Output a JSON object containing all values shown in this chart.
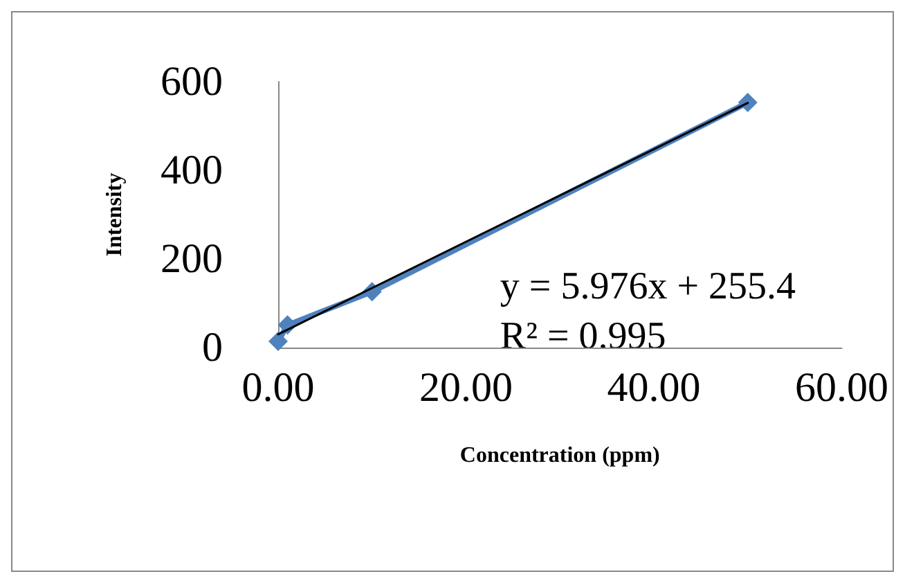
{
  "chart_data": {
    "type": "line",
    "xlabel": "Concentration (ppm)",
    "ylabel": "Intensity",
    "series": [
      {
        "color": "#4f81bd",
        "x": [
          0,
          1,
          10,
          50
        ],
        "values": [
          14,
          51,
          126,
          553
        ],
        "marker": "diamond"
      },
      {
        "type": "line",
        "color": "#000000",
        "x": [
          0,
          50
        ],
        "values": [
          30,
          552
        ],
        "marker": "none"
      }
    ],
    "xlim": [
      0,
      60
    ],
    "xticks": [
      {
        "value": 0,
        "label": "0.00"
      },
      {
        "value": 20,
        "label": "20.00"
      },
      {
        "value": 40,
        "label": "40.00"
      },
      {
        "value": 60,
        "label": "60.00"
      }
    ],
    "ylim": [
      0,
      600
    ],
    "yticks": [
      0,
      200,
      400,
      600
    ],
    "grid": false,
    "annotations": [
      "y = 5.976x + 255.4\nR² = 0.995"
    ]
  }
}
